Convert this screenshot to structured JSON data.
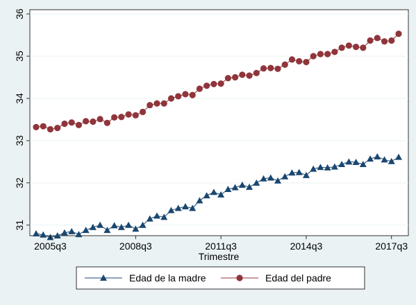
{
  "chart_data": {
    "type": "line",
    "xlabel": "Trimestre",
    "ylabel": "",
    "x_ticks": [
      "2005q3",
      "2008q3",
      "2011q3",
      "2014q3",
      "2017q3"
    ],
    "y_ticks": [
      31,
      32,
      33,
      34,
      35,
      36
    ],
    "ylim": [
      30.75,
      36.1
    ],
    "grid": "horizontal",
    "legend_position": "bottom",
    "x": [
      "2005q1",
      "2005q2",
      "2005q3",
      "2005q4",
      "2006q1",
      "2006q2",
      "2006q3",
      "2006q4",
      "2007q1",
      "2007q2",
      "2007q3",
      "2007q4",
      "2008q1",
      "2008q2",
      "2008q3",
      "2008q4",
      "2009q1",
      "2009q2",
      "2009q3",
      "2009q4",
      "2010q1",
      "2010q2",
      "2010q3",
      "2010q4",
      "2011q1",
      "2011q2",
      "2011q3",
      "2011q4",
      "2012q1",
      "2012q2",
      "2012q3",
      "2012q4",
      "2013q1",
      "2013q2",
      "2013q3",
      "2013q4",
      "2014q1",
      "2014q2",
      "2014q3",
      "2014q4",
      "2015q1",
      "2015q2",
      "2015q3",
      "2015q4",
      "2016q1",
      "2016q2",
      "2016q3",
      "2016q4",
      "2017q1",
      "2017q2",
      "2017q3",
      "2017q4"
    ],
    "series": [
      {
        "name": "Edad de la madre",
        "color": "#1a476f",
        "marker": "triangle",
        "values": [
          30.8,
          30.77,
          30.71,
          30.75,
          30.82,
          30.85,
          30.78,
          30.88,
          30.95,
          31.0,
          30.88,
          30.99,
          30.95,
          31.0,
          30.91,
          31.0,
          31.15,
          31.22,
          31.19,
          31.35,
          31.4,
          31.44,
          31.4,
          31.58,
          31.7,
          31.78,
          31.72,
          31.85,
          31.89,
          31.95,
          31.9,
          32.0,
          32.1,
          32.12,
          32.05,
          32.15,
          32.24,
          32.25,
          32.18,
          32.33,
          32.37,
          32.36,
          32.38,
          32.44,
          32.5,
          32.49,
          32.44,
          32.57,
          32.62,
          32.55,
          32.51,
          32.61
        ]
      },
      {
        "name": "Edad del padre",
        "color": "#90353b",
        "marker": "circle",
        "values": [
          33.32,
          33.34,
          33.27,
          33.3,
          33.4,
          33.43,
          33.37,
          33.46,
          33.45,
          33.51,
          33.42,
          33.55,
          33.56,
          33.62,
          33.6,
          33.68,
          33.84,
          33.88,
          33.88,
          34.0,
          34.05,
          34.1,
          34.08,
          34.23,
          34.3,
          34.34,
          34.35,
          34.48,
          34.5,
          34.56,
          34.54,
          34.6,
          34.71,
          34.72,
          34.7,
          34.8,
          34.92,
          34.88,
          34.86,
          35.0,
          35.05,
          35.05,
          35.1,
          35.2,
          35.25,
          35.22,
          35.2,
          35.37,
          35.43,
          35.35,
          35.37,
          35.53
        ]
      }
    ]
  }
}
